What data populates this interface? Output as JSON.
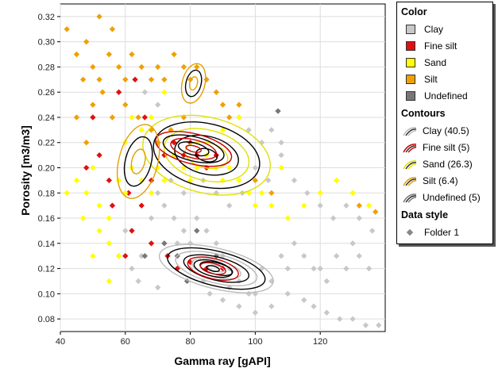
{
  "chart_data": {
    "type": "scatter",
    "title": "",
    "xlabel": "Gamma ray [gAPI]",
    "ylabel": "Porosity [m3/m3]",
    "xlim": [
      40,
      140
    ],
    "ylim": [
      0.07,
      0.33
    ],
    "x_ticks": [
      "40",
      "60",
      "80",
      "100",
      "120"
    ],
    "y_ticks": [
      "0.08",
      "0.10",
      "0.12",
      "0.14",
      "0.16",
      "0.18",
      "0.20",
      "0.22",
      "0.24",
      "0.26",
      "0.28",
      "0.30",
      "0.32"
    ],
    "grid": true,
    "legend_position": "right",
    "series": [
      {
        "name": "Clay",
        "color": "#c8c8c8",
        "points": [
          [
            72,
            0.17
          ],
          [
            75,
            0.16
          ],
          [
            78,
            0.15
          ],
          [
            80,
            0.14
          ],
          [
            82,
            0.16
          ],
          [
            85,
            0.15
          ],
          [
            88,
            0.14
          ],
          [
            90,
            0.13
          ],
          [
            92,
            0.12
          ],
          [
            95,
            0.11
          ],
          [
            98,
            0.1
          ],
          [
            100,
            0.1
          ],
          [
            102,
            0.12
          ],
          [
            105,
            0.11
          ],
          [
            108,
            0.13
          ],
          [
            110,
            0.12
          ],
          [
            112,
            0.14
          ],
          [
            115,
            0.13
          ],
          [
            118,
            0.12
          ],
          [
            120,
            0.12
          ],
          [
            122,
            0.11
          ],
          [
            125,
            0.13
          ],
          [
            128,
            0.12
          ],
          [
            130,
            0.14
          ],
          [
            132,
            0.13
          ],
          [
            135,
            0.12
          ],
          [
            118,
            0.09
          ],
          [
            122,
            0.085
          ],
          [
            126,
            0.08
          ],
          [
            130,
            0.08
          ],
          [
            134,
            0.075
          ],
          [
            138,
            0.075
          ],
          [
            115,
            0.095
          ],
          [
            110,
            0.1
          ],
          [
            105,
            0.09
          ],
          [
            100,
            0.085
          ],
          [
            95,
            0.09
          ],
          [
            90,
            0.095
          ],
          [
            62,
            0.12
          ],
          [
            65,
            0.13
          ],
          [
            68,
            0.16
          ],
          [
            70,
            0.18
          ],
          [
            74,
            0.19
          ],
          [
            78,
            0.18
          ],
          [
            84,
            0.19
          ],
          [
            88,
            0.18
          ],
          [
            92,
            0.17
          ],
          [
            96,
            0.18
          ],
          [
            100,
            0.2
          ],
          [
            104,
            0.19
          ],
          [
            108,
            0.21
          ],
          [
            112,
            0.19
          ],
          [
            116,
            0.18
          ],
          [
            120,
            0.17
          ],
          [
            124,
            0.16
          ],
          [
            128,
            0.17
          ],
          [
            132,
            0.16
          ],
          [
            136,
            0.15
          ],
          [
            95,
            0.24
          ],
          [
            98,
            0.23
          ],
          [
            102,
            0.22
          ],
          [
            105,
            0.23
          ],
          [
            108,
            0.22
          ],
          [
            66,
            0.26
          ],
          [
            70,
            0.25
          ],
          [
            76,
            0.14
          ],
          [
            80,
            0.12
          ],
          [
            84,
            0.11
          ],
          [
            86,
            0.1
          ],
          [
            92,
            0.105
          ],
          [
            60,
            0.15
          ],
          [
            58,
            0.13
          ],
          [
            64,
            0.11
          ],
          [
            70,
            0.105
          ]
        ]
      },
      {
        "name": "Fine silt",
        "color": "#e01010",
        "points": [
          [
            60,
            0.13
          ],
          [
            62,
            0.15
          ],
          [
            65,
            0.17
          ],
          [
            68,
            0.19
          ],
          [
            70,
            0.22
          ],
          [
            72,
            0.21
          ],
          [
            75,
            0.22
          ],
          [
            78,
            0.21
          ],
          [
            80,
            0.22
          ],
          [
            82,
            0.21
          ],
          [
            85,
            0.2
          ],
          [
            88,
            0.21
          ],
          [
            55,
            0.19
          ],
          [
            52,
            0.21
          ],
          [
            50,
            0.24
          ],
          [
            58,
            0.26
          ],
          [
            63,
            0.27
          ],
          [
            66,
            0.24
          ],
          [
            48,
            0.2
          ],
          [
            56,
            0.17
          ],
          [
            73,
            0.13
          ],
          [
            76,
            0.12
          ],
          [
            80,
            0.125
          ],
          [
            85,
            0.12
          ],
          [
            90,
            0.12
          ],
          [
            68,
            0.14
          ],
          [
            61,
            0.18
          ]
        ]
      },
      {
        "name": "Sand",
        "color": "#ffff00",
        "points": [
          [
            45,
            0.19
          ],
          [
            48,
            0.18
          ],
          [
            50,
            0.2
          ],
          [
            52,
            0.17
          ],
          [
            55,
            0.16
          ],
          [
            58,
            0.19
          ],
          [
            60,
            0.18
          ],
          [
            62,
            0.2
          ],
          [
            65,
            0.19
          ],
          [
            68,
            0.18
          ],
          [
            70,
            0.2
          ],
          [
            72,
            0.19
          ],
          [
            75,
            0.21
          ],
          [
            78,
            0.2
          ],
          [
            80,
            0.19
          ],
          [
            82,
            0.2
          ],
          [
            85,
            0.21
          ],
          [
            88,
            0.2
          ],
          [
            90,
            0.19
          ],
          [
            92,
            0.2
          ],
          [
            95,
            0.19
          ],
          [
            98,
            0.18
          ],
          [
            100,
            0.17
          ],
          [
            102,
            0.18
          ],
          [
            105,
            0.17
          ],
          [
            108,
            0.2
          ],
          [
            110,
            0.16
          ],
          [
            115,
            0.17
          ],
          [
            120,
            0.18
          ],
          [
            125,
            0.19
          ],
          [
            130,
            0.18
          ],
          [
            135,
            0.17
          ],
          [
            55,
            0.14
          ],
          [
            58,
            0.13
          ],
          [
            52,
            0.15
          ],
          [
            60,
            0.22
          ],
          [
            62,
            0.24
          ],
          [
            65,
            0.23
          ],
          [
            68,
            0.24
          ],
          [
            72,
            0.26
          ],
          [
            90,
            0.23
          ],
          [
            95,
            0.24
          ],
          [
            42,
            0.18
          ],
          [
            47,
            0.16
          ],
          [
            50,
            0.13
          ],
          [
            55,
            0.11
          ]
        ]
      },
      {
        "name": "Silt",
        "color": "#f0a000",
        "points": [
          [
            42,
            0.31
          ],
          [
            45,
            0.29
          ],
          [
            48,
            0.3
          ],
          [
            50,
            0.28
          ],
          [
            52,
            0.27
          ],
          [
            55,
            0.29
          ],
          [
            58,
            0.28
          ],
          [
            60,
            0.27
          ],
          [
            62,
            0.29
          ],
          [
            65,
            0.28
          ],
          [
            68,
            0.27
          ],
          [
            70,
            0.28
          ],
          [
            72,
            0.27
          ],
          [
            75,
            0.29
          ],
          [
            78,
            0.28
          ],
          [
            80,
            0.27
          ],
          [
            82,
            0.28
          ],
          [
            85,
            0.27
          ],
          [
            88,
            0.26
          ],
          [
            90,
            0.25
          ],
          [
            92,
            0.24
          ],
          [
            95,
            0.25
          ],
          [
            50,
            0.25
          ],
          [
            53,
            0.26
          ],
          [
            56,
            0.24
          ],
          [
            60,
            0.25
          ],
          [
            64,
            0.24
          ],
          [
            68,
            0.23
          ],
          [
            70,
            0.22
          ],
          [
            74,
            0.23
          ],
          [
            78,
            0.24
          ],
          [
            48,
            0.22
          ],
          [
            45,
            0.24
          ],
          [
            52,
            0.32
          ],
          [
            56,
            0.31
          ],
          [
            47,
            0.27
          ],
          [
            137,
            0.165
          ],
          [
            132,
            0.17
          ],
          [
            100,
            0.19
          ],
          [
            105,
            0.18
          ]
        ]
      },
      {
        "name": "Undefined",
        "color": "#777777",
        "points": [
          [
            72,
            0.14
          ],
          [
            76,
            0.13
          ],
          [
            82,
            0.15
          ],
          [
            88,
            0.13
          ],
          [
            107,
            0.245
          ],
          [
            66,
            0.13
          ],
          [
            79,
            0.11
          ]
        ]
      }
    ],
    "contours": [
      {
        "name": "Clay (40.5)",
        "color": "#bbbbbb"
      },
      {
        "name": "Fine silt (5)",
        "color": "#cc0000"
      },
      {
        "name": "Sand (26.3)",
        "color": "#e0e000"
      },
      {
        "name": "Silt (6.4)",
        "color": "#e0a000"
      },
      {
        "name": "Undefined (5)",
        "color": "#777777"
      }
    ]
  },
  "legend": {
    "color_title": "Color",
    "color_items": [
      {
        "label": "Clay",
        "color": "#c8c8c8"
      },
      {
        "label": "Fine silt",
        "color": "#e01010"
      },
      {
        "label": "Sand",
        "color": "#ffff00"
      },
      {
        "label": "Silt",
        "color": "#f0a000"
      },
      {
        "label": "Undefined",
        "color": "#777777"
      }
    ],
    "contours_title": "Contours",
    "contour_items": [
      {
        "label": "Clay (40.5)",
        "color": "#bbbbbb"
      },
      {
        "label": "Fine silt (5)",
        "color": "#cc0000"
      },
      {
        "label": "Sand (26.3)",
        "color": "#e0e000"
      },
      {
        "label": "Silt (6.4)",
        "color": "#e0a000"
      },
      {
        "label": "Undefined (5)",
        "color": "#777777"
      }
    ],
    "style_title": "Data style",
    "style_items": [
      {
        "label": "Folder 1",
        "color": "#888888"
      }
    ]
  }
}
